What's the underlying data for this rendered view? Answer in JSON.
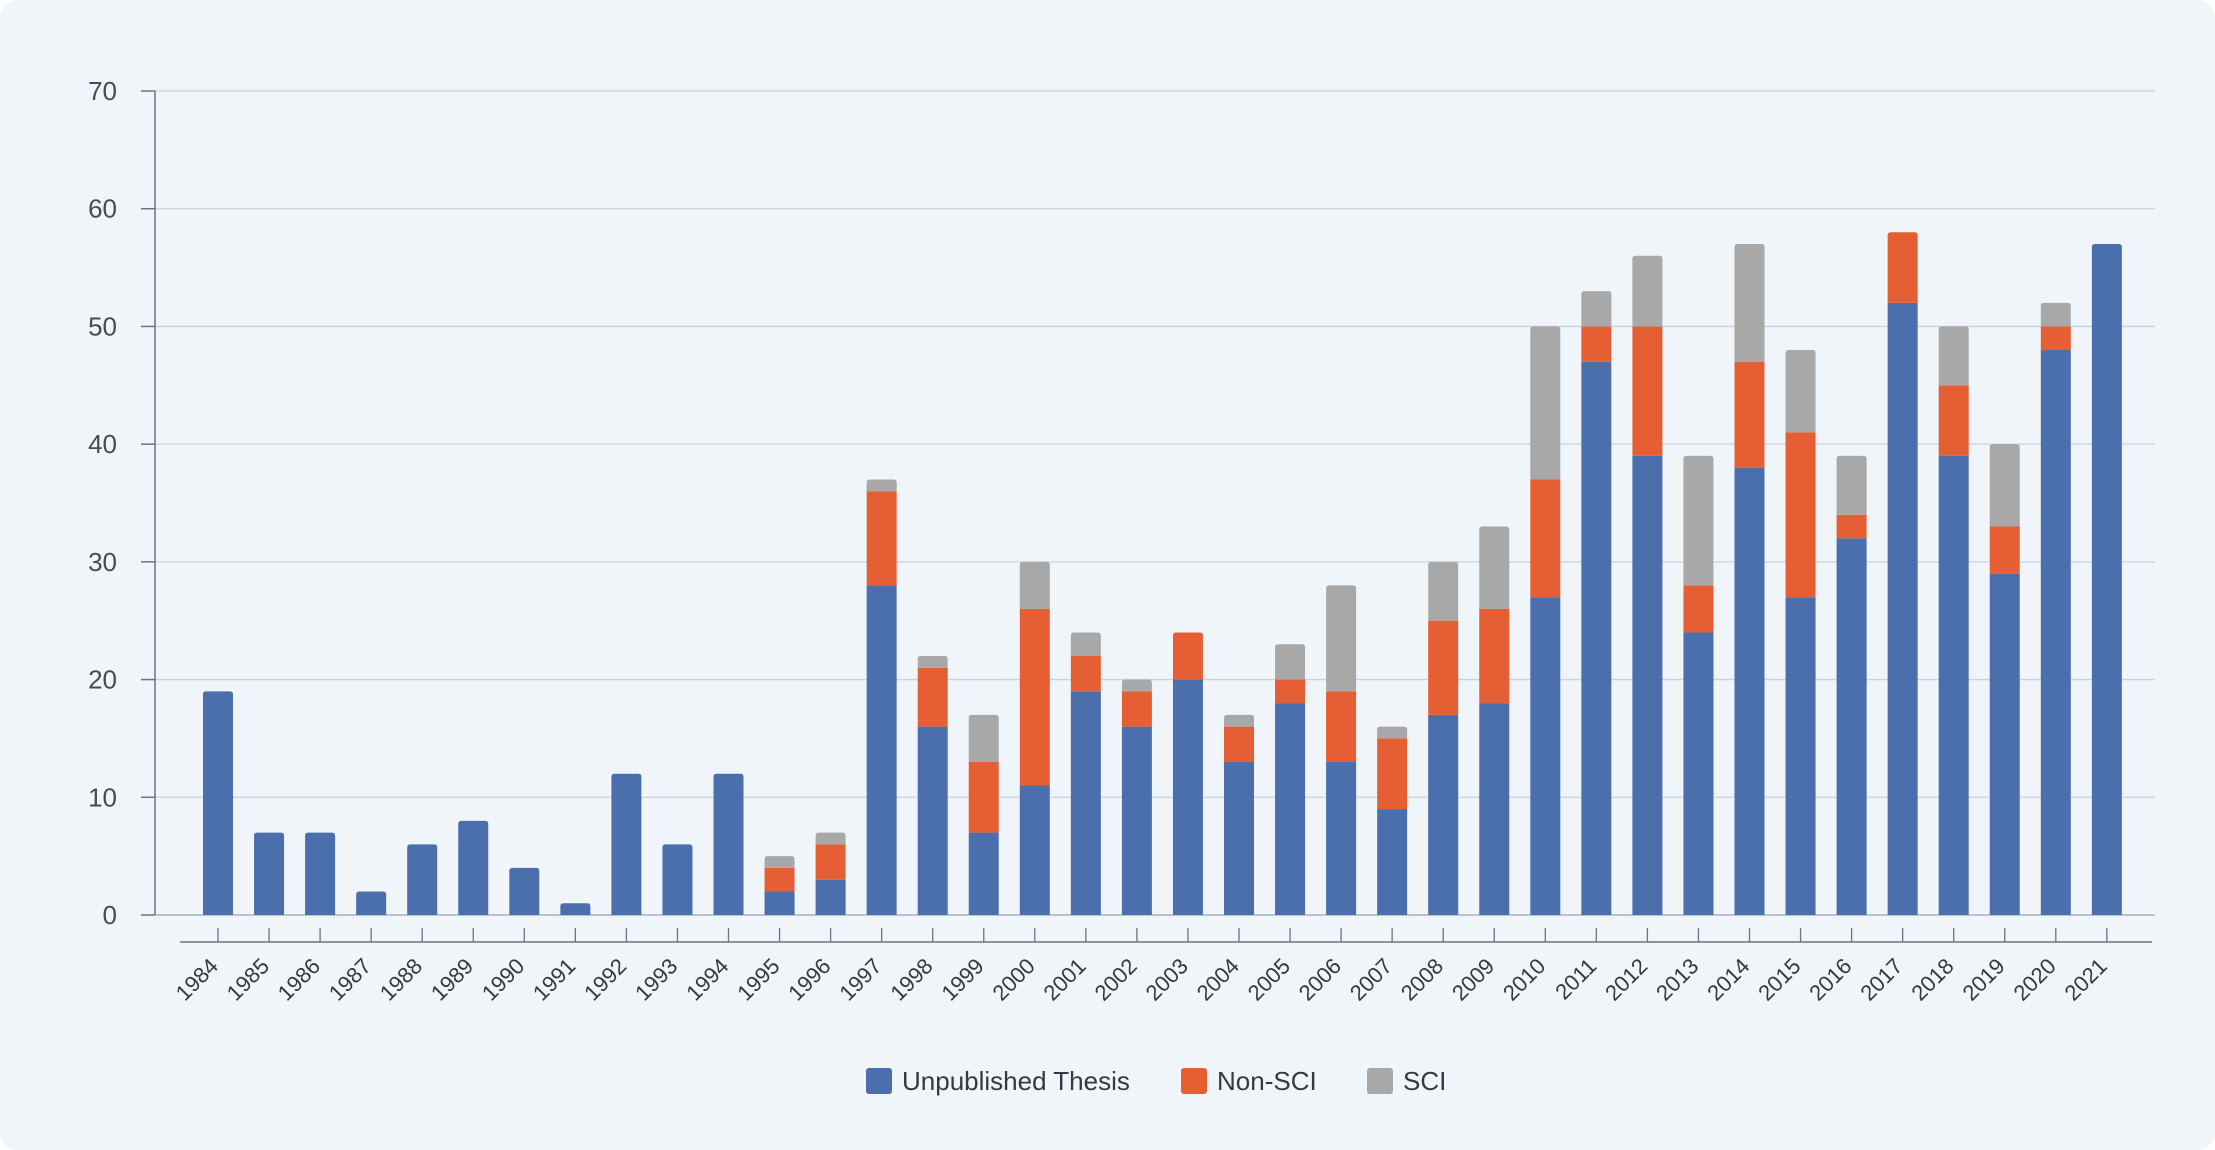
{
  "chart_data": {
    "type": "bar",
    "stacked": true,
    "title": "",
    "xlabel": "",
    "ylabel": "",
    "ylim": [
      0,
      70
    ],
    "yticks": [
      0,
      10,
      20,
      30,
      40,
      50,
      60,
      70
    ],
    "grid": true,
    "legend_position": "bottom-center",
    "categories": [
      "1984",
      "1985",
      "1986",
      "1987",
      "1988",
      "1989",
      "1990",
      "1991",
      "1992",
      "1993",
      "1994",
      "1995",
      "1996",
      "1997",
      "1998",
      "1999",
      "2000",
      "2001",
      "2002",
      "2003",
      "2004",
      "2005",
      "2006",
      "2007",
      "2008",
      "2009",
      "2010",
      "2011",
      "2012",
      "2013",
      "2014",
      "2015",
      "2016",
      "2017",
      "2018",
      "2019",
      "2020",
      "2021"
    ],
    "series": [
      {
        "name": "Unpublished Thesis",
        "color": "#4a6fac",
        "values": [
          19,
          7,
          7,
          2,
          6,
          8,
          4,
          1,
          12,
          6,
          12,
          2,
          3,
          28,
          16,
          7,
          11,
          19,
          16,
          20,
          13,
          18,
          13,
          9,
          17,
          18,
          27,
          47,
          39,
          24,
          38,
          27,
          32,
          52,
          39,
          29,
          48,
          57
        ]
      },
      {
        "name": "Non-SCI",
        "color": "#e65f34",
        "values": [
          0,
          0,
          0,
          0,
          0,
          0,
          0,
          0,
          0,
          0,
          0,
          2,
          3,
          8,
          5,
          6,
          15,
          3,
          3,
          4,
          3,
          2,
          6,
          6,
          8,
          8,
          10,
          3,
          11,
          4,
          9,
          14,
          2,
          6,
          6,
          4,
          2,
          0
        ]
      },
      {
        "name": "SCI",
        "color": "#a8a8a8",
        "values": [
          0,
          0,
          0,
          0,
          0,
          0,
          0,
          0,
          0,
          0,
          0,
          1,
          1,
          1,
          1,
          4,
          4,
          2,
          1,
          0,
          1,
          3,
          9,
          1,
          5,
          7,
          13,
          3,
          6,
          11,
          10,
          7,
          5,
          0,
          5,
          7,
          2,
          0
        ]
      }
    ]
  }
}
